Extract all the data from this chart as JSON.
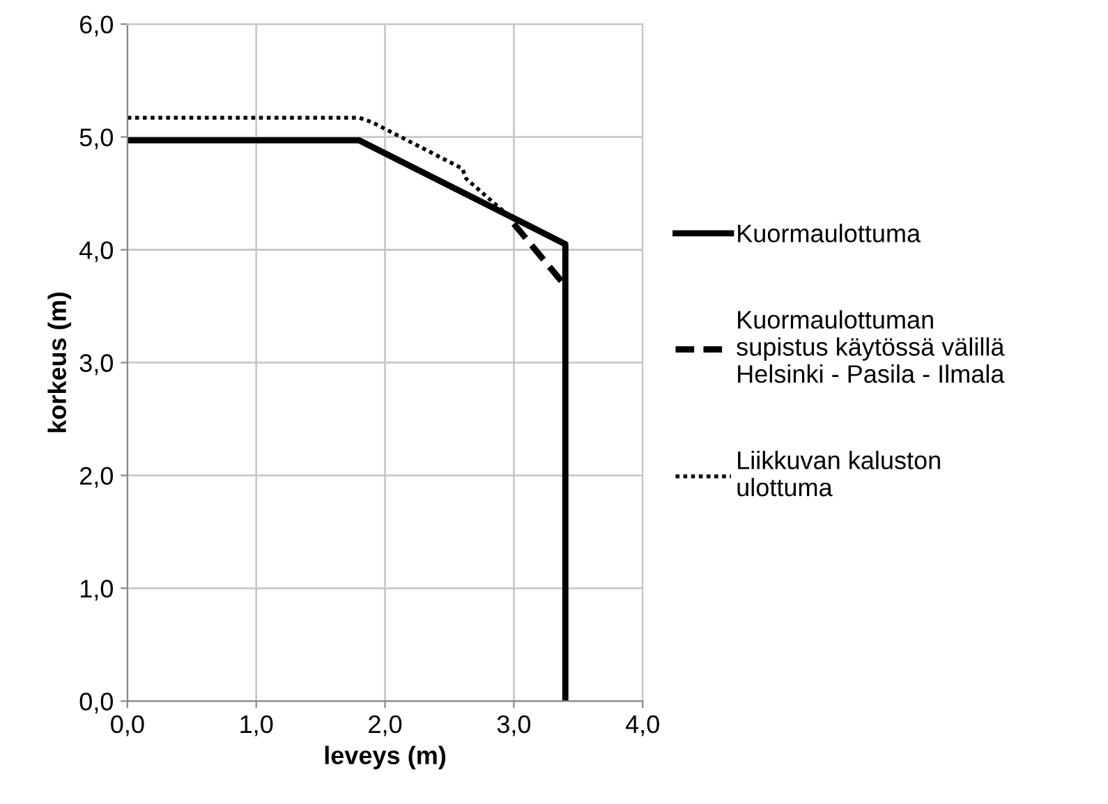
{
  "chart_data": {
    "type": "line",
    "xlabel": "leveys (m)",
    "ylabel": "korkeus (m)",
    "series": [
      {
        "name": "Kuormaulottuma",
        "color": "#000000",
        "line_style": "solid",
        "x": [
          0,
          1.8,
          3.4,
          3.4
        ],
        "values": [
          4.97,
          4.97,
          4.05,
          0
        ]
      },
      {
        "name": "Kuormaulottuman\nsupistus käytössä välillä\nHelsinki - Pasila - Ilmala",
        "color": "#000000",
        "line_style": "dashed",
        "x": [
          3.0,
          3.4
        ],
        "values": [
          4.23,
          3.68
        ]
      },
      {
        "name": "Liikkuvan kaluston\nulottuma",
        "color": "#000000",
        "line_style": "dotted",
        "x": [
          0,
          1.8,
          1.9,
          2.6,
          2.63,
          2.9,
          3.0
        ],
        "values": [
          5.17,
          5.17,
          5.13,
          4.72,
          4.63,
          4.36,
          4.27
        ]
      }
    ],
    "xlim": [
      0,
      4
    ],
    "ylim": [
      0,
      6
    ],
    "xticks": [
      {
        "value": 0,
        "label": "0,0"
      },
      {
        "value": 1,
        "label": "1,0"
      },
      {
        "value": 2,
        "label": "2,0"
      },
      {
        "value": 3,
        "label": "3,0"
      },
      {
        "value": 4,
        "label": "4,0"
      }
    ],
    "yticks": [
      {
        "value": 0,
        "label": "0,0"
      },
      {
        "value": 1,
        "label": "1,0"
      },
      {
        "value": 2,
        "label": "2,0"
      },
      {
        "value": 3,
        "label": "3,0"
      },
      {
        "value": 4,
        "label": "4,0"
      },
      {
        "value": 5,
        "label": "5,0"
      },
      {
        "value": 6,
        "label": "6,0"
      }
    ],
    "grid": true,
    "legend": "right",
    "marker": "none"
  }
}
